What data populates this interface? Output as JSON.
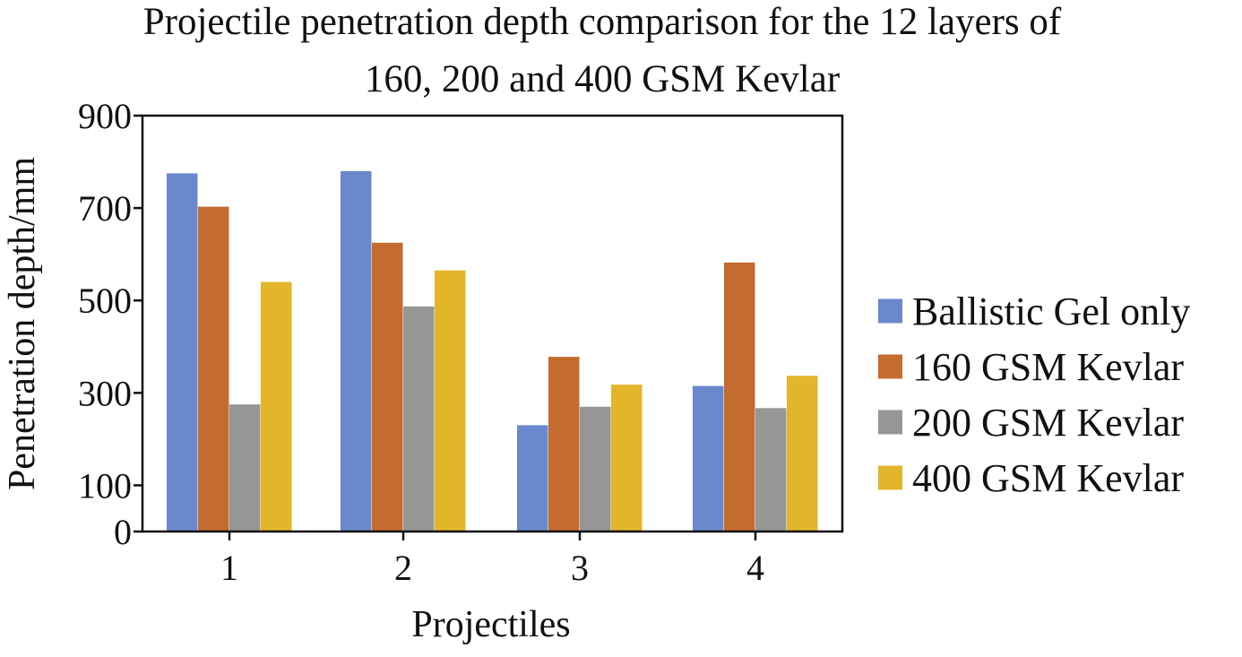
{
  "chart_data": {
    "type": "bar",
    "title": [
      "Projectile penetration depth comparison for the 12 layers of",
      "160, 200 and 400 GSM Kevlar"
    ],
    "xlabel": "Projectiles",
    "ylabel": "Penetration depth/mm",
    "categories": [
      "1",
      "2",
      "3",
      "4"
    ],
    "ylim": [
      0,
      900
    ],
    "yticks": [
      0,
      100,
      300,
      500,
      700,
      900
    ],
    "legend_position": "right",
    "series": [
      {
        "name": "Ballistic Gel only",
        "color": "#6a88cb",
        "values": [
          775,
          780,
          230,
          315
        ]
      },
      {
        "name": "160 GSM Kevlar",
        "color": "#c46b30",
        "values": [
          703,
          625,
          378,
          582
        ]
      },
      {
        "name": "200 GSM Kevlar",
        "color": "#969696",
        "values": [
          275,
          487,
          270,
          267
        ]
      },
      {
        "name": "400 GSM Kevlar",
        "color": "#e3b52a",
        "values": [
          540,
          565,
          318,
          337
        ]
      }
    ]
  }
}
